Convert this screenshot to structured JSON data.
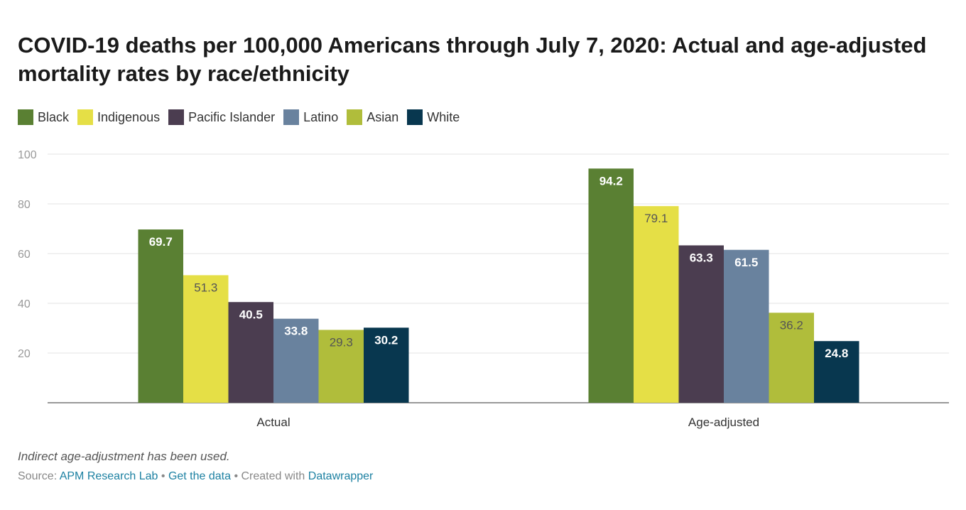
{
  "title": "COVID-19 deaths per 100,000 Americans through July 7, 2020: Actual and age-adjusted mortality rates by race/ethnicity",
  "notes": "Indirect age-adjustment has been used.",
  "footer": {
    "source_prefix": "Source: ",
    "source_link": "APM Research Lab",
    "separator1": " • ",
    "get_data": "Get the data",
    "created_with": " • Created with ",
    "tool_link": "Datawrapper"
  },
  "colors": {
    "Black": "#5a8033",
    "Indigenous": "#e5df46",
    "Pacific Islander": "#4b3d50",
    "Latino": "#69829e",
    "Asian": "#b0bd3b",
    "White": "#08374f"
  },
  "label_colors": {
    "Black": "#ffffff",
    "Indigenous": "#555555",
    "Pacific Islander": "#ffffff",
    "Latino": "#ffffff",
    "Asian": "#555555",
    "White": "#ffffff"
  },
  "chart_data": {
    "type": "bar",
    "categories": [
      "Actual",
      "Age-adjusted"
    ],
    "series": [
      {
        "name": "Black",
        "values": [
          69.7,
          94.2
        ]
      },
      {
        "name": "Indigenous",
        "values": [
          51.3,
          79.1
        ]
      },
      {
        "name": "Pacific Islander",
        "values": [
          40.5,
          63.3
        ]
      },
      {
        "name": "Latino",
        "values": [
          33.8,
          61.5
        ]
      },
      {
        "name": "Asian",
        "values": [
          29.3,
          36.2
        ]
      },
      {
        "name": "White",
        "values": [
          30.2,
          24.8
        ]
      }
    ],
    "yticks": [
      20,
      40,
      60,
      80,
      100
    ],
    "ylim": [
      0,
      100
    ],
    "grid": true,
    "legend": "top-left"
  }
}
